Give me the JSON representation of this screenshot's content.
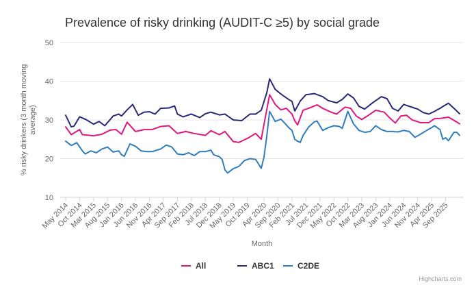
{
  "chart_data": {
    "type": "line",
    "title": "Prevalence of risky drinking (AUDIT-C ≥5) by social grade",
    "xlabel": "Month",
    "ylabel": "% risky drinkers (3 month moving average)",
    "ylabel_lines": [
      "% risky drinkers (3 month moving",
      "average)"
    ],
    "ylim": [
      10,
      50
    ],
    "yticks": [
      10,
      20,
      30,
      40,
      50
    ],
    "x_start": "May 2014",
    "x_tick_labels": [
      "May 2014",
      "Oct 2014",
      "Mar 2015",
      "Aug 2015",
      "Jan 2016",
      "Jun 2016",
      "Nov 2016",
      "Apr 2017",
      "Sep 2017",
      "Feb 2018",
      "Jul 2018",
      "Dec 2018",
      "May 2019",
      "Oct 2019",
      "Apr 2020",
      "Sep 2020",
      "Feb 2021",
      "Jul 2021",
      "Dec 2021",
      "May 2022",
      "Oct 2022",
      "Mar 2023",
      "Aug 2023",
      "Jan 2024",
      "Jun 2024",
      "Nov 2024",
      "Apr 2025",
      "Sep 2025"
    ],
    "x_tick_index": [
      0,
      5,
      10,
      15,
      20,
      25,
      30,
      35,
      40,
      45,
      50,
      55,
      60,
      65,
      71,
      76,
      81,
      86,
      91,
      96,
      101,
      106,
      111,
      116,
      121,
      126,
      131,
      136
    ],
    "num_points": 142,
    "legend_position": "bottom-center",
    "series": [
      {
        "name": "All",
        "color": "#e0167f",
        "keyframes": [
          [
            0,
            28.2
          ],
          [
            2,
            26.2
          ],
          [
            5,
            27.5
          ],
          [
            6,
            26.2
          ],
          [
            10,
            25.9
          ],
          [
            13,
            26.3
          ],
          [
            16,
            27.4
          ],
          [
            18,
            27.5
          ],
          [
            20,
            26.3
          ],
          [
            22,
            29.4
          ],
          [
            25,
            27.0
          ],
          [
            28,
            27.5
          ],
          [
            31,
            27.5
          ],
          [
            34,
            28.3
          ],
          [
            37,
            28.5
          ],
          [
            40,
            26.5
          ],
          [
            43,
            27.0
          ],
          [
            46,
            26.5
          ],
          [
            50,
            26.0
          ],
          [
            52,
            27.2
          ],
          [
            55,
            26.2
          ],
          [
            57,
            27.0
          ],
          [
            60,
            24.4
          ],
          [
            62,
            24.2
          ],
          [
            65,
            25.2
          ],
          [
            68,
            26.5
          ],
          [
            70,
            25.0
          ],
          [
            73,
            36.5
          ],
          [
            75,
            34.0
          ],
          [
            77,
            32.6
          ],
          [
            79,
            33.0
          ],
          [
            81,
            31.5
          ],
          [
            82,
            29.8
          ],
          [
            83,
            28.7
          ],
          [
            85,
            32.5
          ],
          [
            88,
            33.3
          ],
          [
            90,
            33.9
          ],
          [
            92,
            33.0
          ],
          [
            95,
            32.0
          ],
          [
            97,
            31.5
          ],
          [
            100,
            33.3
          ],
          [
            102,
            33.0
          ],
          [
            104,
            31.0
          ],
          [
            106,
            30.1
          ],
          [
            108,
            31.0
          ],
          [
            111,
            32.5
          ],
          [
            114,
            32.0
          ],
          [
            116,
            30.5
          ],
          [
            118,
            29.2
          ],
          [
            120,
            31.0
          ],
          [
            122,
            31.2
          ],
          [
            124,
            30.0
          ],
          [
            127,
            29.3
          ],
          [
            130,
            29.3
          ],
          [
            132,
            30.3
          ],
          [
            134,
            30.4
          ],
          [
            137,
            30.7
          ],
          [
            139,
            29.9
          ],
          [
            141,
            29.0
          ]
        ]
      },
      {
        "name": "ABC1",
        "color": "#28287a",
        "keyframes": [
          [
            0,
            31.2
          ],
          [
            2,
            28.2
          ],
          [
            3,
            28.4
          ],
          [
            5,
            30.8
          ],
          [
            7,
            30.2
          ],
          [
            10,
            28.9
          ],
          [
            12,
            29.6
          ],
          [
            14,
            28.5
          ],
          [
            17,
            31.0
          ],
          [
            19,
            31.5
          ],
          [
            20,
            31.0
          ],
          [
            22,
            32.6
          ],
          [
            24,
            34.0
          ],
          [
            26,
            31.2
          ],
          [
            28,
            32.0
          ],
          [
            30,
            32.1
          ],
          [
            32,
            31.5
          ],
          [
            34,
            33.0
          ],
          [
            37,
            33.1
          ],
          [
            39,
            33.6
          ],
          [
            40,
            31.5
          ],
          [
            42,
            30.8
          ],
          [
            45,
            31.5
          ],
          [
            48,
            30.6
          ],
          [
            50,
            31.6
          ],
          [
            52,
            32.0
          ],
          [
            55,
            31.3
          ],
          [
            57,
            31.5
          ],
          [
            60,
            30.0
          ],
          [
            63,
            29.8
          ],
          [
            66,
            31.5
          ],
          [
            68,
            31.5
          ],
          [
            70,
            32.5
          ],
          [
            72,
            37.0
          ],
          [
            73,
            40.6
          ],
          [
            75,
            37.9
          ],
          [
            77,
            36.7
          ],
          [
            80,
            35.2
          ],
          [
            81,
            34.8
          ],
          [
            82,
            32.3
          ],
          [
            84,
            34.9
          ],
          [
            86,
            36.5
          ],
          [
            89,
            36.8
          ],
          [
            92,
            36.0
          ],
          [
            94,
            35.0
          ],
          [
            97,
            34.4
          ],
          [
            99,
            35.3
          ],
          [
            101,
            36.7
          ],
          [
            103,
            35.7
          ],
          [
            105,
            33.5
          ],
          [
            107,
            32.8
          ],
          [
            110,
            34.5
          ],
          [
            113,
            36.0
          ],
          [
            115,
            35.5
          ],
          [
            117,
            33.0
          ],
          [
            119,
            32.3
          ],
          [
            121,
            34.0
          ],
          [
            123,
            33.5
          ],
          [
            126,
            32.8
          ],
          [
            128,
            31.9
          ],
          [
            130,
            31.5
          ],
          [
            132,
            32.2
          ],
          [
            134,
            33.0
          ],
          [
            136,
            33.9
          ],
          [
            137,
            34.3
          ],
          [
            139,
            33.0
          ],
          [
            141,
            31.6
          ]
        ]
      },
      {
        "name": "C2DE",
        "color": "#2f7dc1",
        "keyframes": [
          [
            0,
            24.5
          ],
          [
            2,
            23.4
          ],
          [
            4,
            24.1
          ],
          [
            6,
            22.0
          ],
          [
            7,
            21.2
          ],
          [
            9,
            22.0
          ],
          [
            11,
            21.5
          ],
          [
            13,
            22.5
          ],
          [
            15,
            23.0
          ],
          [
            17,
            21.7
          ],
          [
            19,
            22.0
          ],
          [
            20,
            21.0
          ],
          [
            21,
            20.6
          ],
          [
            23,
            23.8
          ],
          [
            25,
            23.2
          ],
          [
            27,
            22.0
          ],
          [
            29,
            21.8
          ],
          [
            31,
            21.8
          ],
          [
            34,
            22.5
          ],
          [
            36,
            23.5
          ],
          [
            38,
            23.0
          ],
          [
            40,
            21.2
          ],
          [
            42,
            21.0
          ],
          [
            44,
            21.5
          ],
          [
            46,
            20.8
          ],
          [
            48,
            21.8
          ],
          [
            50,
            21.8
          ],
          [
            52,
            22.2
          ],
          [
            53,
            21.0
          ],
          [
            55,
            20.5
          ],
          [
            56,
            19.8
          ],
          [
            57,
            17.1
          ],
          [
            58,
            16.3
          ],
          [
            60,
            17.4
          ],
          [
            62,
            18.0
          ],
          [
            64,
            19.5
          ],
          [
            66,
            20.0
          ],
          [
            68,
            19.8
          ],
          [
            70,
            17.5
          ],
          [
            71,
            20.4
          ],
          [
            72,
            25.8
          ],
          [
            73,
            32.2
          ],
          [
            75,
            29.6
          ],
          [
            77,
            30.2
          ],
          [
            78,
            29.5
          ],
          [
            80,
            27.9
          ],
          [
            81,
            27.3
          ],
          [
            82,
            25.0
          ],
          [
            83,
            24.5
          ],
          [
            84,
            24.2
          ],
          [
            85,
            26.0
          ],
          [
            87,
            28.2
          ],
          [
            89,
            29.5
          ],
          [
            90,
            29.7
          ],
          [
            92,
            27.3
          ],
          [
            94,
            28.0
          ],
          [
            96,
            28.5
          ],
          [
            98,
            28.3
          ],
          [
            99,
            27.8
          ],
          [
            101,
            32.2
          ],
          [
            103,
            29.0
          ],
          [
            105,
            27.3
          ],
          [
            107,
            26.8
          ],
          [
            109,
            27.0
          ],
          [
            111,
            28.5
          ],
          [
            113,
            27.5
          ],
          [
            115,
            27.0
          ],
          [
            117,
            27.0
          ],
          [
            119,
            26.9
          ],
          [
            121,
            27.3
          ],
          [
            123,
            27.0
          ],
          [
            125,
            25.5
          ],
          [
            127,
            26.3
          ],
          [
            129,
            27.2
          ],
          [
            131,
            28.0
          ],
          [
            132,
            28.5
          ],
          [
            134,
            27.5
          ],
          [
            135,
            25.0
          ],
          [
            136,
            25.4
          ],
          [
            137,
            24.6
          ],
          [
            139,
            26.8
          ],
          [
            140,
            26.8
          ],
          [
            141,
            26.0
          ]
        ]
      }
    ]
  },
  "credit": "Highcharts.com"
}
